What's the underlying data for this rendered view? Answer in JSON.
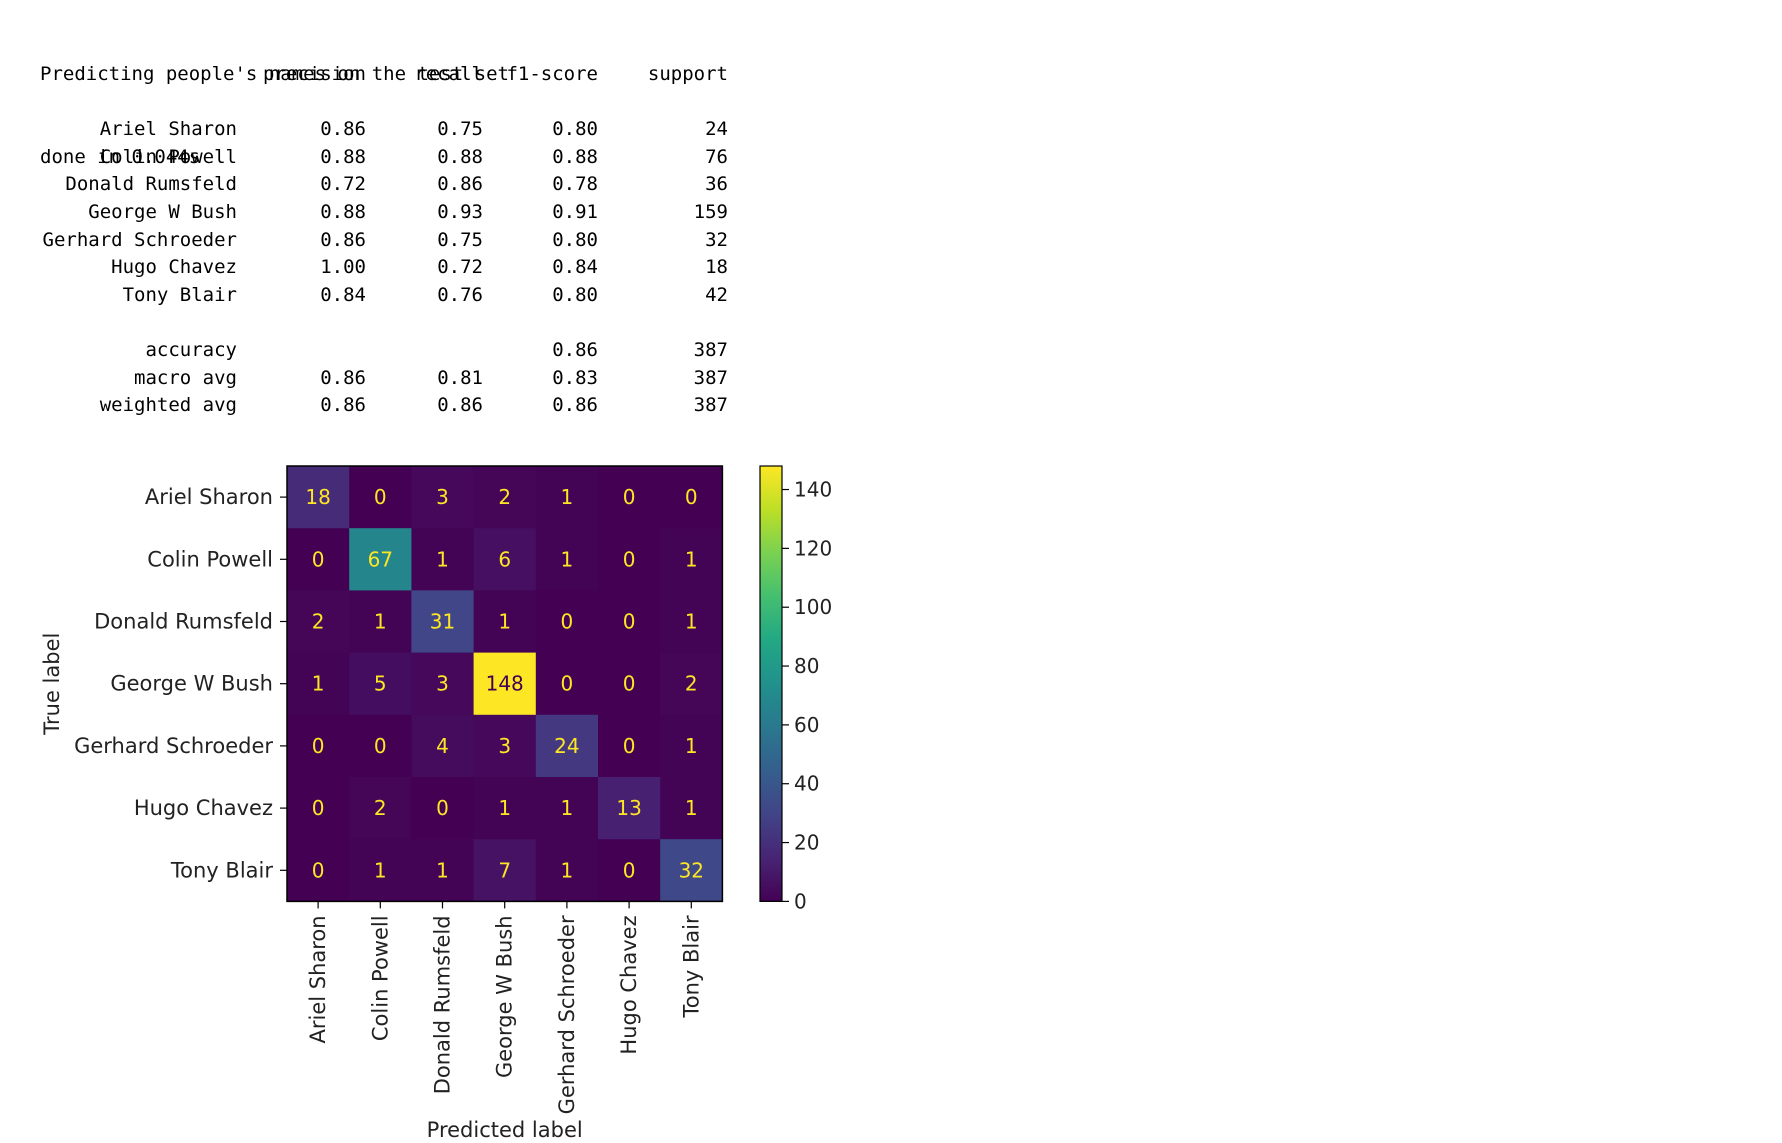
{
  "console": {
    "line1": "Predicting people's names on the test set",
    "line2": "done in 0.044s"
  },
  "report": {
    "headers": [
      "precision",
      "recall",
      "f1-score",
      "support"
    ],
    "rows": [
      {
        "label": "Ariel Sharon",
        "values": [
          "0.86",
          "0.75",
          "0.80",
          "24"
        ]
      },
      {
        "label": "Colin Powell",
        "values": [
          "0.88",
          "0.88",
          "0.88",
          "76"
        ]
      },
      {
        "label": "Donald Rumsfeld",
        "values": [
          "0.72",
          "0.86",
          "0.78",
          "36"
        ]
      },
      {
        "label": "George W Bush",
        "values": [
          "0.88",
          "0.93",
          "0.91",
          "159"
        ]
      },
      {
        "label": "Gerhard Schroeder",
        "values": [
          "0.86",
          "0.75",
          "0.80",
          "32"
        ]
      },
      {
        "label": "Hugo Chavez",
        "values": [
          "1.00",
          "0.72",
          "0.84",
          "18"
        ]
      },
      {
        "label": "Tony Blair",
        "values": [
          "0.84",
          "0.76",
          "0.80",
          "42"
        ]
      }
    ],
    "summary": [
      {
        "label": "accuracy",
        "values": [
          "",
          "",
          "0.86",
          "387"
        ]
      },
      {
        "label": "macro avg",
        "values": [
          "0.86",
          "0.81",
          "0.83",
          "387"
        ]
      },
      {
        "label": "weighted avg",
        "values": [
          "0.86",
          "0.86",
          "0.86",
          "387"
        ]
      }
    ]
  },
  "chart_data": {
    "type": "heatmap",
    "title": "",
    "xlabel": "Predicted label",
    "ylabel": "True label",
    "x_categories": [
      "Ariel Sharon",
      "Colin Powell",
      "Donald Rumsfeld",
      "George W Bush",
      "Gerhard Schroeder",
      "Hugo Chavez",
      "Tony Blair"
    ],
    "y_categories": [
      "Ariel Sharon",
      "Colin Powell",
      "Donald Rumsfeld",
      "George W Bush",
      "Gerhard Schroeder",
      "Hugo Chavez",
      "Tony Blair"
    ],
    "values": [
      [
        18,
        0,
        3,
        2,
        1,
        0,
        0
      ],
      [
        0,
        67,
        1,
        6,
        1,
        0,
        1
      ],
      [
        2,
        1,
        31,
        1,
        0,
        0,
        1
      ],
      [
        1,
        5,
        3,
        148,
        0,
        0,
        2
      ],
      [
        0,
        0,
        4,
        3,
        24,
        0,
        1
      ],
      [
        0,
        2,
        0,
        1,
        1,
        13,
        1
      ],
      [
        0,
        1,
        1,
        7,
        1,
        0,
        32
      ]
    ],
    "colormap": "viridis",
    "colorbar": {
      "range": [
        0,
        148
      ],
      "ticks": [
        0,
        20,
        40,
        60,
        80,
        100,
        120,
        140
      ]
    },
    "grid": false
  }
}
